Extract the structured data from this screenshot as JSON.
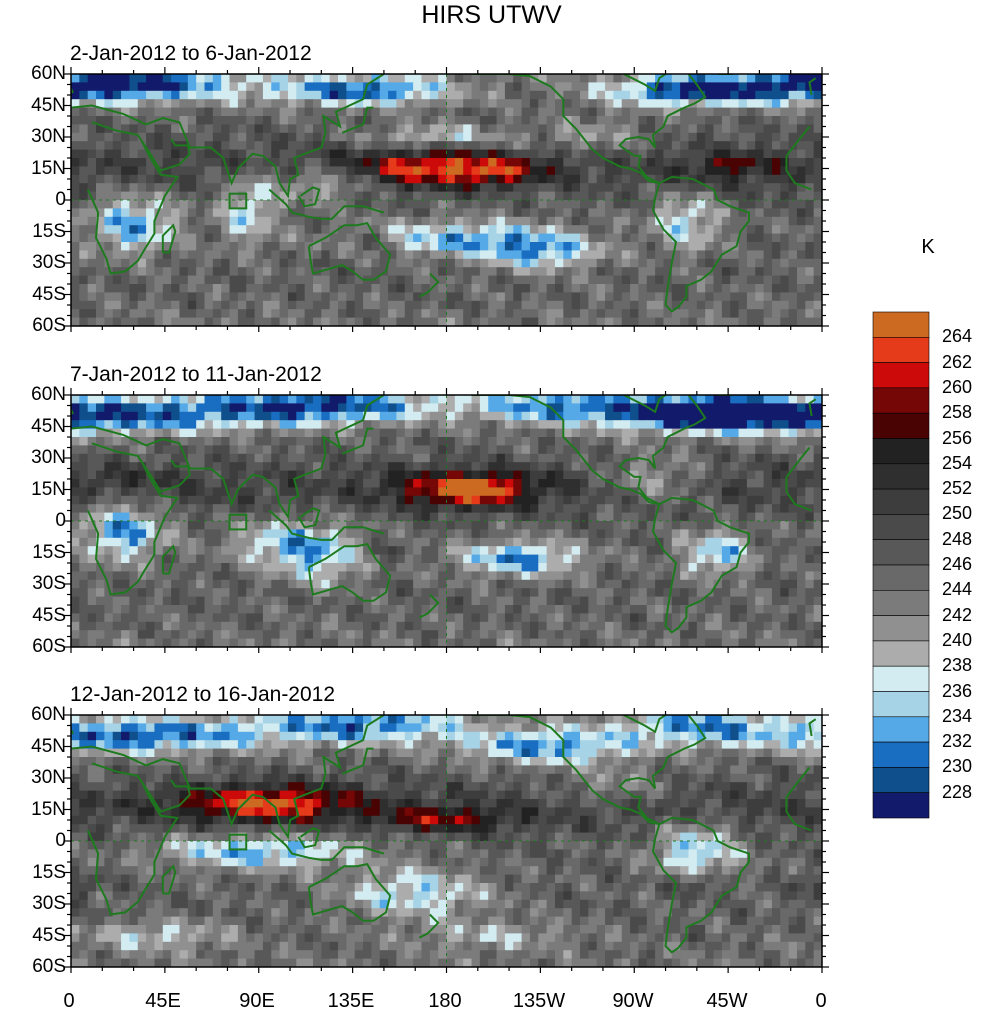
{
  "title": "HIRS UTWV",
  "panels": [
    {
      "subtitle": "2-Jan-2012 to 6-Jan-2012"
    },
    {
      "subtitle": "7-Jan-2012 to 11-Jan-2012"
    },
    {
      "subtitle": "12-Jan-2012 to 16-Jan-2012"
    }
  ],
  "lat_labels": [
    "60N",
    "45N",
    "30N",
    "15N",
    "0",
    "15S",
    "30S",
    "45S",
    "60S"
  ],
  "lon_labels": [
    "0",
    "45E",
    "90E",
    "135E",
    "180",
    "135W",
    "90W",
    "45W",
    "0"
  ],
  "colorbar": {
    "unit": "K",
    "levels": [
      "264",
      "262",
      "260",
      "258",
      "256",
      "254",
      "252",
      "250",
      "248",
      "246",
      "244",
      "242",
      "240",
      "238",
      "236",
      "234",
      "232",
      "230",
      "228"
    ],
    "colors": [
      "#cc6a22",
      "#e53b1a",
      "#cc0a0a",
      "#760707",
      "#4a0303",
      "#222222",
      "#2f2f2f",
      "#3d3d3d",
      "#4a4a4a",
      "#585858",
      "#696969",
      "#7b7b7b",
      "#909090",
      "#acacac",
      "#d3ecf1",
      "#a6d3e6",
      "#55a9e6",
      "#1a6ec1",
      "#0f4f8c",
      "#121a6b"
    ]
  },
  "coast_color": "#1e7a1e",
  "chart_data": {
    "type": "heatmap",
    "title": "HIRS UTWV",
    "unit": "K",
    "x_range": [
      0,
      360
    ],
    "y_range": [
      -60,
      60
    ],
    "x_ticks": [
      "0",
      "45E",
      "90E",
      "135E",
      "180",
      "135W",
      "90W",
      "45W",
      "0"
    ],
    "y_ticks": [
      "60N",
      "45N",
      "30N",
      "15N",
      "0",
      "15S",
      "30S",
      "45S",
      "60S"
    ],
    "color_levels_K": [
      228,
      230,
      232,
      234,
      236,
      238,
      240,
      242,
      244,
      246,
      248,
      250,
      252,
      254,
      256,
      258,
      260,
      262,
      264
    ],
    "panels": [
      {
        "period": "2-Jan-2012 to 6-Jan-2012",
        "max_region_K": 262,
        "max_region": "subtropical central Pacific near 165E–200E, 10–20N"
      },
      {
        "period": "7-Jan-2012 to 11-Jan-2012",
        "max_region_K": 264,
        "max_region": "central Pacific near 175E–205E, 10–20N"
      },
      {
        "period": "12-Jan-2012 to 16-Jan-2012",
        "max_region_K": 262,
        "max_region": "northern India / Bay of Bengal near 70E–110E, 15–25N"
      }
    ]
  }
}
